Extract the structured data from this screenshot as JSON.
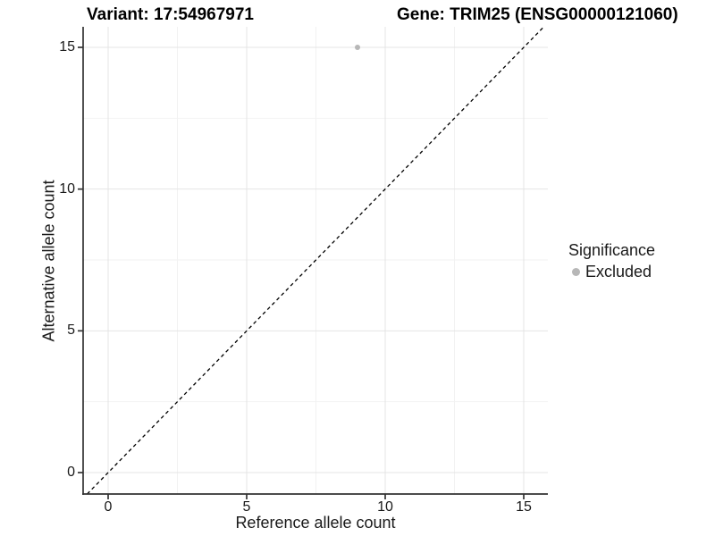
{
  "chart_data": {
    "type": "scatter",
    "title_left": "Variant: 17:54967971",
    "title_right": "Gene: TRIM25 (ENSG00000121060)",
    "xlabel": "Reference allele count",
    "ylabel": "Alternative allele count",
    "x_ticks": [
      0,
      5,
      10,
      15
    ],
    "y_ticks": [
      0,
      5,
      10,
      15
    ],
    "x_minor_ticks": [
      2.5,
      7.5,
      12.5
    ],
    "y_minor_ticks": [
      2.5,
      7.5,
      12.5
    ],
    "xlim": [
      -0.9,
      15.9
    ],
    "ylim": [
      -0.76,
      15.73
    ],
    "grid": "major+minor",
    "points": [
      {
        "x": 9,
        "y": 15,
        "significance": "Excluded"
      }
    ],
    "identity_line": {
      "slope": 1,
      "intercept": 0,
      "style": "dashed"
    },
    "legend": {
      "title": "Significance",
      "position": "right",
      "entries": [
        {
          "label": "Excluded",
          "color": "#b7b7b7",
          "marker": "circle"
        }
      ]
    }
  },
  "colors": {
    "background": "#ffffff",
    "axis_line": "#333333",
    "tick_mark": "#333333",
    "grid_major": "#e4e4e4",
    "grid_minor": "#f1f1f1",
    "identity_line": "#000000",
    "point": "#b7b7b7"
  }
}
